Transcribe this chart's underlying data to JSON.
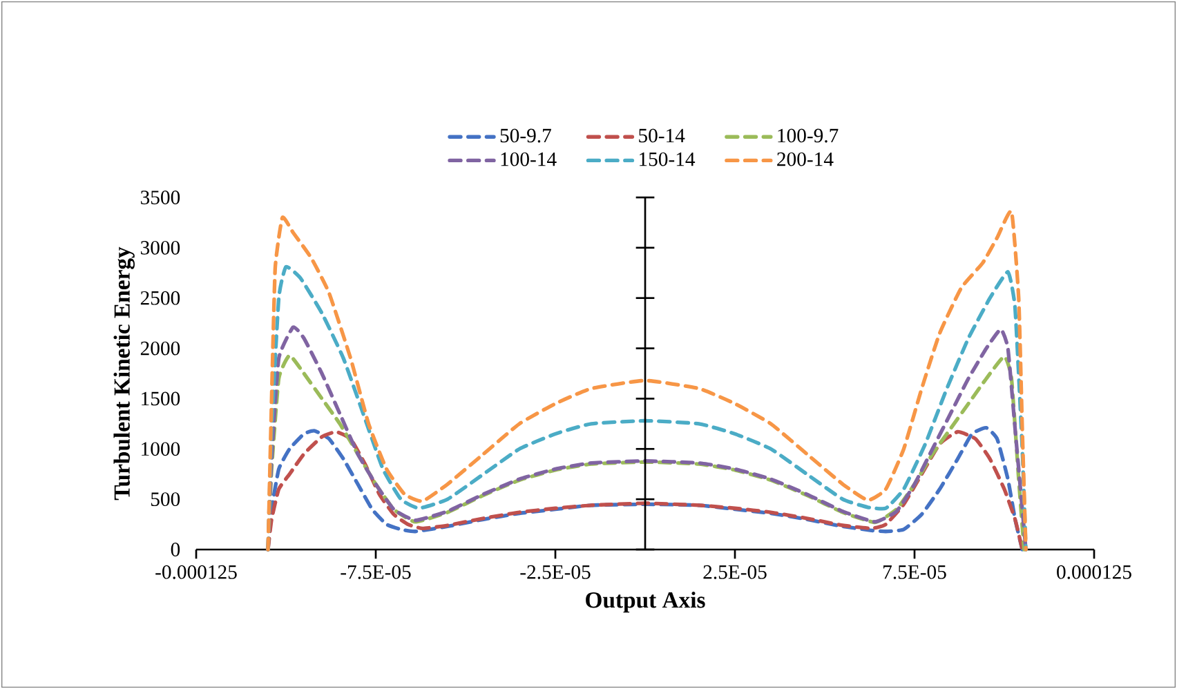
{
  "chart_data": {
    "type": "line",
    "xlabel": "Output Axis",
    "ylabel": "Turbulent Kinetic Energy",
    "legend": "top",
    "line_style": "dashed",
    "grid": false,
    "xlim": [
      -0.000125,
      0.000125
    ],
    "xticks": [
      {
        "value": -0.000125,
        "label": "-0.000125"
      },
      {
        "value": -7.5e-05,
        "label": "-7.5E-05"
      },
      {
        "value": -2.5e-05,
        "label": "-2.5E-05"
      },
      {
        "value": 2.5e-05,
        "label": "2.5E-05"
      },
      {
        "value": 7.5e-05,
        "label": "7.5E-05"
      },
      {
        "value": 0.000125,
        "label": "0.000125"
      }
    ],
    "ylim": [
      0,
      3500
    ],
    "yticks": [
      0,
      500,
      1000,
      1500,
      2000,
      2500,
      3000,
      3500
    ],
    "series": [
      {
        "name": "50-9.7",
        "color": "#4472c4",
        "x": [
          -0.000105,
          -0.000104,
          -0.000102,
          -9.9e-05,
          -9.5e-05,
          -9.2e-05,
          -8.8e-05,
          -8.4e-05,
          -8e-05,
          -7.6e-05,
          -7.2e-05,
          -6.8e-05,
          -6.4e-05,
          -5.5e-05,
          -4.5e-05,
          -3.5e-05,
          -2.5e-05,
          -1.5e-05,
          0,
          1.5e-05,
          2.5e-05,
          3.5e-05,
          4.5e-05,
          5.5e-05,
          6.3e-05,
          6.7e-05,
          7.2e-05,
          7.7e-05,
          8.2e-05,
          8.7e-05,
          9.1e-05,
          9.5e-05,
          9.8e-05,
          0.000101,
          0.000103,
          0.000105
        ],
        "values": [
          0,
          400,
          800,
          1000,
          1150,
          1180,
          1100,
          900,
          650,
          400,
          250,
          200,
          180,
          230,
          300,
          360,
          400,
          440,
          450,
          440,
          400,
          360,
          300,
          230,
          190,
          180,
          200,
          350,
          600,
          900,
          1150,
          1210,
          1100,
          700,
          300,
          0
        ]
      },
      {
        "name": "50-14",
        "color": "#c0504d",
        "x": [
          -0.000105,
          -0.000104,
          -0.000102,
          -9.9e-05,
          -9.5e-05,
          -9e-05,
          -8.6e-05,
          -8.2e-05,
          -7.8e-05,
          -7.4e-05,
          -7e-05,
          -6.6e-05,
          -6.2e-05,
          -5.5e-05,
          -4.5e-05,
          -3.5e-05,
          -2.5e-05,
          -1.5e-05,
          0,
          1.5e-05,
          2.5e-05,
          3.5e-05,
          4.5e-05,
          5.5e-05,
          6.3e-05,
          6.7e-05,
          7.2e-05,
          7.7e-05,
          8.2e-05,
          8.7e-05,
          9.2e-05,
          9.6e-05,
          0.0001,
          0.000103,
          0.000105
        ],
        "values": [
          0,
          300,
          600,
          750,
          950,
          1120,
          1170,
          1100,
          850,
          550,
          350,
          250,
          210,
          240,
          310,
          370,
          410,
          440,
          460,
          440,
          410,
          370,
          310,
          240,
          210,
          250,
          450,
          750,
          1050,
          1170,
          1100,
          900,
          600,
          300,
          0
        ]
      },
      {
        "name": "100-9.7",
        "color": "#9bbb59",
        "x": [
          -0.000105,
          -0.000104,
          -0.000102,
          -9.9e-05,
          -9.5e-05,
          -9e-05,
          -8.5e-05,
          -8e-05,
          -7.5e-05,
          -7e-05,
          -6.4e-05,
          -5.5e-05,
          -4.5e-05,
          -3.5e-05,
          -2.5e-05,
          -1.5e-05,
          0,
          1.5e-05,
          2.5e-05,
          3.5e-05,
          4.5e-05,
          5.5e-05,
          6.4e-05,
          7e-05,
          7.5e-05,
          8e-05,
          8.5e-05,
          9e-05,
          9.5e-05,
          0.0001,
          0.000102,
          0.000104,
          0.0001055
        ],
        "values": [
          0,
          800,
          1700,
          1930,
          1750,
          1500,
          1250,
          950,
          650,
          400,
          275,
          370,
          540,
          690,
          790,
          850,
          870,
          850,
          790,
          690,
          540,
          370,
          270,
          400,
          650,
          950,
          1200,
          1450,
          1700,
          1920,
          1700,
          700,
          0
        ]
      },
      {
        "name": "100-14",
        "color": "#8064a2",
        "x": [
          -0.000105,
          -0.000104,
          -0.000102,
          -9.8e-05,
          -9.5e-05,
          -9e-05,
          -8.5e-05,
          -8e-05,
          -7.5e-05,
          -7e-05,
          -6.4e-05,
          -5.5e-05,
          -4.5e-05,
          -3.5e-05,
          -2.5e-05,
          -1.5e-05,
          0,
          1.5e-05,
          2.5e-05,
          3.5e-05,
          4.5e-05,
          5.5e-05,
          6.4e-05,
          7e-05,
          7.5e-05,
          8e-05,
          8.5e-05,
          9e-05,
          9.5e-05,
          9.9e-05,
          0.000101,
          0.000103,
          0.000105,
          0.000106
        ],
        "values": [
          0,
          900,
          1900,
          2210,
          2100,
          1750,
          1350,
          950,
          650,
          400,
          290,
          380,
          550,
          700,
          800,
          860,
          880,
          860,
          800,
          700,
          550,
          380,
          275,
          380,
          650,
          1000,
          1350,
          1700,
          2000,
          2190,
          2000,
          1200,
          400,
          0
        ]
      },
      {
        "name": "150-14",
        "color": "#4bacc6",
        "x": [
          -0.000105,
          -0.000104,
          -0.000102,
          -0.0001,
          -9.6e-05,
          -9e-05,
          -8.4e-05,
          -7.8e-05,
          -7.3e-05,
          -6.8e-05,
          -6.3e-05,
          -5.5e-05,
          -4.5e-05,
          -3.5e-05,
          -2.5e-05,
          -1.5e-05,
          0,
          1.5e-05,
          2.5e-05,
          3.5e-05,
          4.5e-05,
          5.5e-05,
          6.2e-05,
          6.7e-05,
          7.2e-05,
          7.8e-05,
          8.4e-05,
          9e-05,
          9.6e-05,
          0.000101,
          0.000103,
          0.000105,
          0.000106
        ],
        "values": [
          0,
          1200,
          2500,
          2810,
          2700,
          2350,
          1900,
          1300,
          800,
          500,
          410,
          500,
          750,
          1000,
          1150,
          1250,
          1280,
          1250,
          1150,
          1000,
          750,
          500,
          420,
          410,
          600,
          1050,
          1600,
          2100,
          2500,
          2760,
          2400,
          1000,
          0
        ]
      },
      {
        "name": "200-14",
        "color": "#f79646",
        "x": [
          -0.000105,
          -0.000104,
          -0.000103,
          -0.000101,
          -9.8e-05,
          -9.3e-05,
          -8.8e-05,
          -8.2e-05,
          -7.7e-05,
          -7.2e-05,
          -6.7e-05,
          -6.2e-05,
          -5.5e-05,
          -4.5e-05,
          -3.5e-05,
          -2.5e-05,
          -1.5e-05,
          0,
          1.5e-05,
          2.5e-05,
          3.5e-05,
          4.5e-05,
          5.5e-05,
          6.2e-05,
          6.7e-05,
          7.2e-05,
          7.7e-05,
          8.2e-05,
          8.8e-05,
          9.4e-05,
          9.8e-05,
          0.000102,
          0.000104,
          0.000105,
          0.000106
        ],
        "values": [
          0,
          1500,
          2800,
          3300,
          3150,
          2900,
          2550,
          1900,
          1250,
          800,
          550,
          480,
          650,
          950,
          1250,
          1450,
          1600,
          1680,
          1600,
          1450,
          1250,
          950,
          650,
          490,
          600,
          1000,
          1600,
          2150,
          2600,
          2850,
          3100,
          3360,
          2500,
          1200,
          0
        ]
      }
    ]
  }
}
